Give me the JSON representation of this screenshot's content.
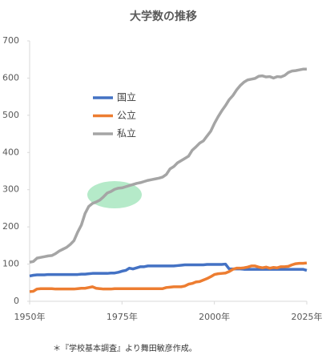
{
  "chart_data": {
    "type": "line",
    "title": "大学数の推移",
    "note": "＊『学校基本調査』より舞田敏彦作成。",
    "x": [
      1950,
      1951,
      1952,
      1953,
      1954,
      1955,
      1956,
      1957,
      1958,
      1959,
      1960,
      1961,
      1962,
      1963,
      1964,
      1965,
      1966,
      1967,
      1968,
      1969,
      1970,
      1971,
      1972,
      1973,
      1974,
      1975,
      1976,
      1977,
      1978,
      1979,
      1980,
      1981,
      1982,
      1983,
      1984,
      1985,
      1986,
      1987,
      1988,
      1989,
      1990,
      1991,
      1992,
      1993,
      1994,
      1995,
      1996,
      1997,
      1998,
      1999,
      2000,
      2001,
      2002,
      2003,
      2004,
      2005,
      2006,
      2007,
      2008,
      2009,
      2010,
      2011,
      2012,
      2013,
      2014,
      2015,
      2016,
      2017,
      2018,
      2019,
      2020,
      2021,
      2022,
      2023,
      2024,
      2025
    ],
    "series": [
      {
        "name": "国立",
        "color": "#4472c4",
        "values": [
          68,
          70,
          71,
          71,
          71,
          72,
          72,
          72,
          72,
          72,
          72,
          72,
          72,
          72,
          73,
          73,
          74,
          75,
          75,
          75,
          75,
          75,
          76,
          76,
          78,
          81,
          83,
          89,
          87,
          90,
          93,
          93,
          95,
          95,
          95,
          95,
          95,
          95,
          95,
          95,
          96,
          97,
          98,
          98,
          98,
          98,
          98,
          98,
          99,
          99,
          99,
          99,
          99,
          100,
          87,
          87,
          87,
          87,
          86,
          86,
          86,
          86,
          86,
          86,
          86,
          86,
          86,
          86,
          86,
          86,
          86,
          86,
          86,
          86,
          86,
          83
        ]
      },
      {
        "name": "公立",
        "color": "#ed7d31",
        "values": [
          26,
          27,
          33,
          34,
          34,
          34,
          34,
          33,
          33,
          33,
          33,
          33,
          33,
          34,
          35,
          35,
          37,
          39,
          35,
          34,
          33,
          33,
          33,
          34,
          34,
          34,
          34,
          34,
          34,
          34,
          34,
          34,
          34,
          34,
          34,
          34,
          34,
          37,
          38,
          39,
          39,
          39,
          41,
          46,
          48,
          52,
          53,
          57,
          61,
          66,
          72,
          74,
          75,
          76,
          80,
          86,
          89,
          89,
          90,
          92,
          95,
          95,
          92,
          90,
          92,
          89,
          91,
          90,
          93,
          93,
          94,
          98,
          101,
          102,
          102,
          103
        ]
      },
      {
        "name": "私立",
        "color": "#a5a5a5",
        "values": [
          105,
          107,
          116,
          118,
          120,
          122,
          123,
          128,
          135,
          140,
          145,
          153,
          163,
          186,
          205,
          236,
          255,
          263,
          267,
          272,
          281,
          291,
          295,
          301,
          304,
          305,
          308,
          311,
          314,
          317,
          319,
          322,
          325,
          327,
          329,
          331,
          334,
          341,
          356,
          362,
          372,
          378,
          384,
          390,
          406,
          415,
          425,
          431,
          444,
          457,
          478,
          496,
          512,
          526,
          542,
          553,
          568,
          580,
          589,
          595,
          597,
          599,
          605,
          606,
          603,
          604,
          600,
          604,
          603,
          607,
          615,
          619,
          620,
          622,
          624,
          624
        ]
      }
    ],
    "xlim": [
      1950,
      2025
    ],
    "xticks": [
      {
        "value": 1950,
        "label": "1950年"
      },
      {
        "value": 1975,
        "label": "1975年"
      },
      {
        "value": 2000,
        "label": "2000年"
      },
      {
        "value": 2025,
        "label": "2025年"
      }
    ],
    "ylim": [
      0,
      700
    ],
    "yticks": [
      0,
      100,
      200,
      300,
      400,
      500,
      600,
      700
    ]
  }
}
